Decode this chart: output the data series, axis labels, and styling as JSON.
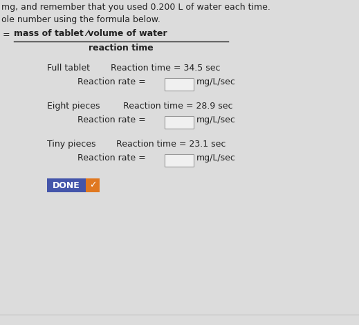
{
  "bg_color": "#dcdcdc",
  "line1": "mg, and remember that you used 0.200 L of water each time.",
  "line2": "ole number using the formula below.",
  "formula_numerator": "mass of tablet ⁄volume of water",
  "formula_denominator": "reaction time",
  "eq_sign": "=",
  "full_tablet_label": "Full tablet",
  "full_tablet_time": "Reaction time = 34.5 sec",
  "full_tablet_rate_prefix": "Reaction rate =",
  "full_tablet_rate_suffix": "mg/L/sec",
  "eight_pieces_label": "Eight pieces",
  "eight_pieces_time": "Reaction time = 28.9 sec",
  "eight_pieces_rate_prefix": "Reaction rate =",
  "eight_pieces_rate_suffix": "mg/L/sec",
  "tiny_pieces_label": "Tiny pieces",
  "tiny_pieces_time": "Reaction time = 23.1 sec",
  "tiny_pieces_rate_prefix": "Reaction rate =",
  "tiny_pieces_rate_suffix": "mg/L/sec",
  "done_text": "DONE",
  "done_bg": "#4455aa",
  "done_text_color": "#ffffff",
  "check_bg": "#e07820",
  "check_color": "#ffffff",
  "text_color": "#222222",
  "box_color": "#f0f0f0",
  "box_edge_color": "#999999",
  "font_size_main": 9.0,
  "font_size_bold": 9.0
}
